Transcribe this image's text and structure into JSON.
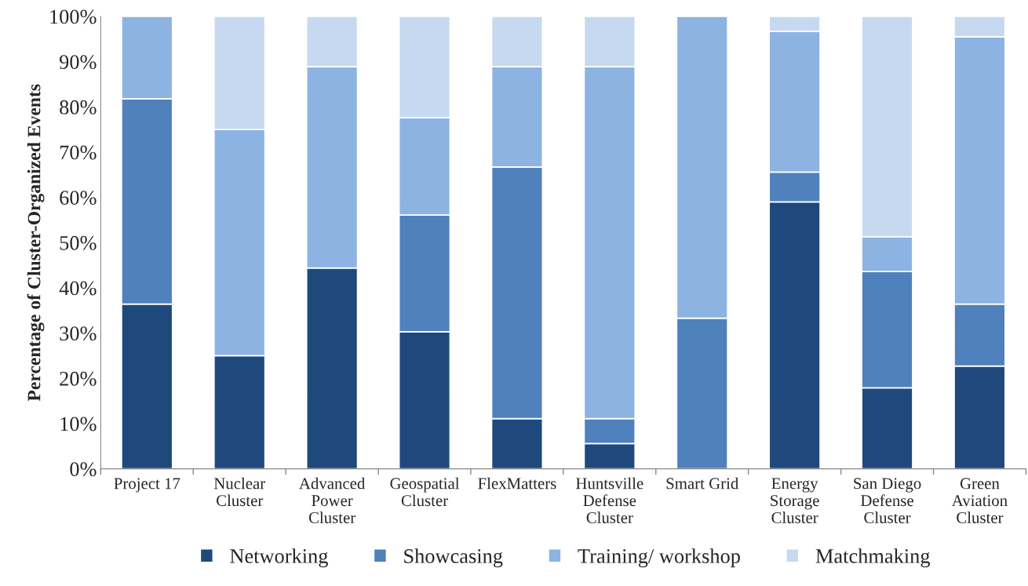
{
  "chart_data": {
    "type": "bar",
    "stacked": true,
    "ylabel": "Percentage of Cluster-Organized Events",
    "categories": [
      "Project 17",
      "Nuclear\nCluster",
      "Advanced\nPower\nCluster",
      "Geospatial\nCluster",
      "FlexMatters",
      "Huntsville\nDefense\nCluster",
      "Smart Grid",
      "Energy\nStorage\nCluster",
      "San Diego\nDefense\nCluster",
      "Green\nAviation\nCluster"
    ],
    "series": [
      {
        "name": "Networking",
        "color": "#1f497d",
        "values": [
          36.4,
          25,
          44.4,
          30.3,
          11.1,
          5.6,
          0,
          59.0,
          17.9,
          22.7
        ]
      },
      {
        "name": "Showcasing",
        "color": "#4f81bd",
        "values": [
          45.4,
          0,
          0,
          25.8,
          55.6,
          5.5,
          33.3,
          6.6,
          25.7,
          13.7
        ]
      },
      {
        "name": "Training/ workshop",
        "color": "#8db3e2",
        "values": [
          18.2,
          50,
          44.5,
          21.5,
          22.2,
          77.8,
          66.7,
          31.1,
          7.7,
          59.1
        ]
      },
      {
        "name": "Matchmaking",
        "color": "#c6d9f1",
        "values": [
          0,
          25,
          11.1,
          22.4,
          11.1,
          11.1,
          0,
          3.3,
          48.7,
          4.5
        ]
      }
    ],
    "ylim": [
      0,
      100
    ],
    "yticks": [
      {
        "value": 0,
        "label": "0%"
      },
      {
        "value": 10,
        "label": "10%"
      },
      {
        "value": 20,
        "label": "20%"
      },
      {
        "value": 30,
        "label": "30%"
      },
      {
        "value": 40,
        "label": "40%"
      },
      {
        "value": 50,
        "label": "50%"
      },
      {
        "value": 60,
        "label": "60%"
      },
      {
        "value": 70,
        "label": "70%"
      },
      {
        "value": 80,
        "label": "80%"
      },
      {
        "value": 90,
        "label": "90%"
      },
      {
        "value": 100,
        "label": "100%"
      }
    ],
    "legend": "bottom"
  }
}
